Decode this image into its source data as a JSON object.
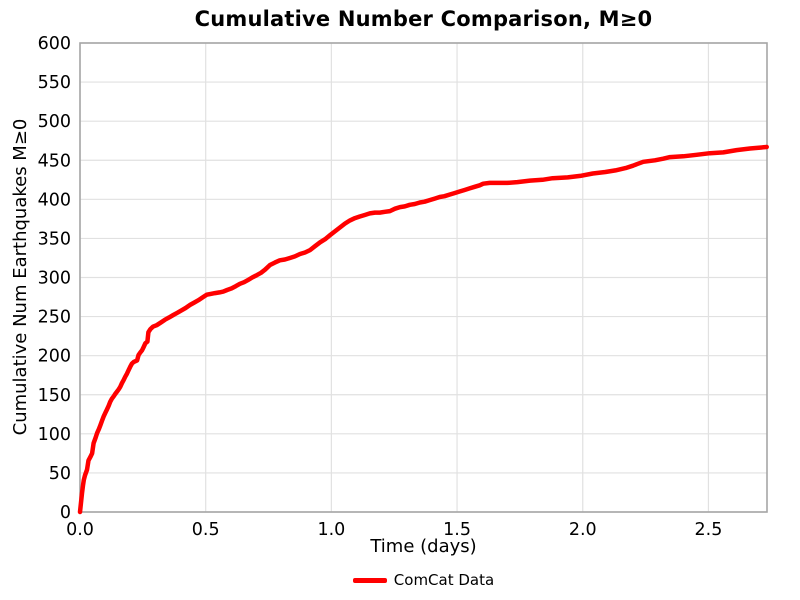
{
  "chart_data": {
    "type": "line",
    "title": "Cumulative Number Comparison, M≥0",
    "xlabel": "Time (days)",
    "ylabel": "Cumulative Num Earthquakes M≥0",
    "xlim": [
      0,
      2.733
    ],
    "ylim": [
      0,
      600
    ],
    "xticks": [
      0,
      0.5,
      1,
      1.5,
      2,
      2.5
    ],
    "xtick_labels": [
      "0.0",
      "0.5",
      "1.0",
      "1.5",
      "2.0",
      "2.5"
    ],
    "yticks": [
      0,
      50,
      100,
      150,
      200,
      250,
      300,
      350,
      400,
      450,
      500,
      550,
      600
    ],
    "ytick_labels": [
      "0",
      "50",
      "100",
      "150",
      "200",
      "250",
      "300",
      "350",
      "400",
      "450",
      "500",
      "550",
      "600"
    ],
    "grid": true,
    "legend": {
      "position": "bottom-center",
      "entries": [
        {
          "label": "ComCat Data",
          "color": "#ff0000"
        }
      ]
    },
    "series": [
      {
        "name": "ComCat Data",
        "color": "#ff0000",
        "line_width": 4.5,
        "points": [
          [
            0.0,
            0
          ],
          [
            0.004,
            12
          ],
          [
            0.008,
            24
          ],
          [
            0.012,
            34
          ],
          [
            0.015,
            41
          ],
          [
            0.02,
            47
          ],
          [
            0.028,
            54
          ],
          [
            0.034,
            66
          ],
          [
            0.042,
            71
          ],
          [
            0.048,
            75
          ],
          [
            0.054,
            88
          ],
          [
            0.062,
            95
          ],
          [
            0.068,
            101
          ],
          [
            0.075,
            106
          ],
          [
            0.081,
            111
          ],
          [
            0.088,
            117
          ],
          [
            0.094,
            122
          ],
          [
            0.101,
            127
          ],
          [
            0.107,
            131
          ],
          [
            0.114,
            136
          ],
          [
            0.12,
            141
          ],
          [
            0.127,
            145
          ],
          [
            0.134,
            148
          ],
          [
            0.14,
            151
          ],
          [
            0.147,
            154
          ],
          [
            0.154,
            157
          ],
          [
            0.16,
            160
          ],
          [
            0.167,
            165
          ],
          [
            0.174,
            169
          ],
          [
            0.18,
            173
          ],
          [
            0.187,
            177
          ],
          [
            0.194,
            182
          ],
          [
            0.2,
            186
          ],
          [
            0.207,
            190
          ],
          [
            0.214,
            192
          ],
          [
            0.227,
            194
          ],
          [
            0.233,
            201
          ],
          [
            0.24,
            204
          ],
          [
            0.247,
            207
          ],
          [
            0.253,
            211
          ],
          [
            0.26,
            216
          ],
          [
            0.268,
            218
          ],
          [
            0.272,
            230
          ],
          [
            0.28,
            234
          ],
          [
            0.29,
            237
          ],
          [
            0.305,
            239
          ],
          [
            0.32,
            242
          ],
          [
            0.338,
            246
          ],
          [
            0.355,
            249
          ],
          [
            0.371,
            252
          ],
          [
            0.388,
            255
          ],
          [
            0.404,
            258
          ],
          [
            0.42,
            261
          ],
          [
            0.438,
            265
          ],
          [
            0.455,
            268
          ],
          [
            0.471,
            271
          ],
          [
            0.49,
            275
          ],
          [
            0.504,
            278
          ],
          [
            0.52,
            279
          ],
          [
            0.537,
            280
          ],
          [
            0.555,
            281
          ],
          [
            0.57,
            282
          ],
          [
            0.585,
            284
          ],
          [
            0.603,
            286
          ],
          [
            0.62,
            289
          ],
          [
            0.636,
            292
          ],
          [
            0.653,
            294
          ],
          [
            0.67,
            297
          ],
          [
            0.685,
            300
          ],
          [
            0.703,
            303
          ],
          [
            0.72,
            306
          ],
          [
            0.736,
            310
          ],
          [
            0.756,
            316
          ],
          [
            0.775,
            319
          ],
          [
            0.795,
            322
          ],
          [
            0.815,
            323
          ],
          [
            0.835,
            325
          ],
          [
            0.855,
            327
          ],
          [
            0.875,
            330
          ],
          [
            0.895,
            332
          ],
          [
            0.915,
            335
          ],
          [
            0.935,
            340
          ],
          [
            0.955,
            345
          ],
          [
            0.975,
            349
          ],
          [
            0.994,
            354
          ],
          [
            1.014,
            359
          ],
          [
            1.034,
            364
          ],
          [
            1.054,
            369
          ],
          [
            1.074,
            373
          ],
          [
            1.094,
            376
          ],
          [
            1.113,
            378
          ],
          [
            1.133,
            380
          ],
          [
            1.153,
            382
          ],
          [
            1.173,
            383
          ],
          [
            1.193,
            383
          ],
          [
            1.213,
            384
          ],
          [
            1.233,
            385
          ],
          [
            1.253,
            388
          ],
          [
            1.273,
            390
          ],
          [
            1.292,
            391
          ],
          [
            1.312,
            393
          ],
          [
            1.332,
            394
          ],
          [
            1.352,
            396
          ],
          [
            1.371,
            397
          ],
          [
            1.391,
            399
          ],
          [
            1.411,
            401
          ],
          [
            1.431,
            403
          ],
          [
            1.45,
            404
          ],
          [
            1.47,
            406
          ],
          [
            1.49,
            408
          ],
          [
            1.51,
            410
          ],
          [
            1.53,
            412
          ],
          [
            1.55,
            414
          ],
          [
            1.57,
            416
          ],
          [
            1.59,
            418
          ],
          [
            1.604,
            420
          ],
          [
            1.63,
            421
          ],
          [
            1.66,
            421
          ],
          [
            1.7,
            421
          ],
          [
            1.74,
            422
          ],
          [
            1.79,
            424
          ],
          [
            1.84,
            425
          ],
          [
            1.88,
            427
          ],
          [
            1.94,
            428
          ],
          [
            1.99,
            430
          ],
          [
            2.04,
            433
          ],
          [
            2.09,
            435
          ],
          [
            2.13,
            437
          ],
          [
            2.17,
            440
          ],
          [
            2.2,
            443
          ],
          [
            2.215,
            445
          ],
          [
            2.241,
            448
          ],
          [
            2.287,
            450
          ],
          [
            2.32,
            452
          ],
          [
            2.347,
            454
          ],
          [
            2.4,
            455
          ],
          [
            2.453,
            457
          ],
          [
            2.506,
            459
          ],
          [
            2.559,
            460
          ],
          [
            2.612,
            463
          ],
          [
            2.665,
            465
          ],
          [
            2.7,
            466
          ],
          [
            2.732,
            467
          ]
        ]
      }
    ]
  },
  "colors": {
    "background": "#ffffff",
    "text": "#000000",
    "grid": "#e1e1e1",
    "spine": "#a6a6a6",
    "line_red": "#ff0000"
  }
}
